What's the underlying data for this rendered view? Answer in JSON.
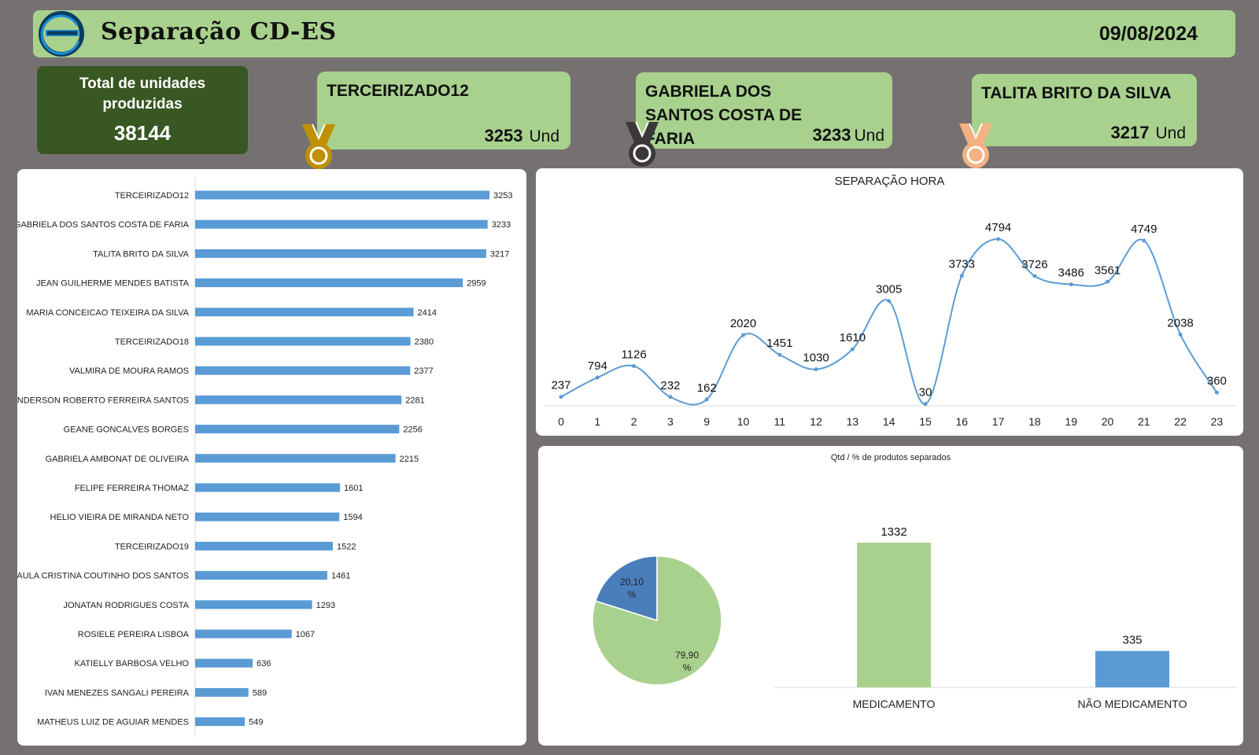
{
  "header": {
    "title": "Separação CD-ES",
    "date": "09/08/2024",
    "logo_icon": "company-logo"
  },
  "total": {
    "label": "Total de unidades produzidas",
    "value": "38144"
  },
  "top3": [
    {
      "rank": 1,
      "name": "TERCEIRIZADO12",
      "value": "3253",
      "unit": "Und",
      "medal_icon": "gold-medal-icon",
      "medal_color": "#bf9000"
    },
    {
      "rank": 2,
      "name": "GABRIELA DOS SANTOS COSTA DE FARIA",
      "value": "3233",
      "unit": "Und",
      "medal_icon": "silver-medal-icon",
      "medal_color": "#3b3838"
    },
    {
      "rank": 3,
      "name": "TALITA BRITO DA SILVA",
      "value": "3217",
      "unit": "Und",
      "medal_icon": "bronze-medal-icon",
      "medal_color": "#f4b183"
    }
  ],
  "chart_data": [
    {
      "type": "bar",
      "orientation": "horizontal",
      "color": "#5b9bd5",
      "categories": [
        "TERCEIRIZADO12",
        "GABRIELA DOS SANTOS COSTA DE FARIA",
        "TALITA BRITO DA SILVA",
        "JEAN GUILHERME MENDES BATISTA",
        "MARIA CONCEICAO TEIXEIRA DA SILVA",
        "TERCEIRIZADO18",
        "VALMIRA DE MOURA RAMOS",
        "ANDERSON ROBERTO FERREIRA SANTOS",
        "GEANE GONCALVES BORGES",
        "GABRIELA AMBONAT DE OLIVEIRA",
        "FELIPE FERREIRA THOMAZ",
        "HELIO VIEIRA DE MIRANDA NETO",
        "TERCEIRIZADO19",
        "PAULA CRISTINA COUTINHO DOS SANTOS",
        "JONATAN RODRIGUES COSTA",
        "ROSIELE PEREIRA LISBOA",
        "KATIELLY BARBOSA VELHO",
        "IVAN MENEZES SANGALI PEREIRA",
        "MATHEUS LUIZ DE AGUIAR MENDES"
      ],
      "values": [
        3253,
        3233,
        3217,
        2959,
        2414,
        2380,
        2377,
        2281,
        2256,
        2215,
        1601,
        1594,
        1522,
        1461,
        1293,
        1067,
        636,
        589,
        549
      ],
      "xlim": [
        0,
        3253
      ],
      "data_labels": true
    },
    {
      "type": "line",
      "smooth": true,
      "color": "#5b9bd5",
      "title": "SEPARAÇÃO HORA",
      "categories": [
        "0",
        "1",
        "2",
        "3",
        "9",
        "10",
        "11",
        "12",
        "13",
        "14",
        "15",
        "16",
        "17",
        "18",
        "19",
        "20",
        "21",
        "22",
        "23"
      ],
      "values": [
        237,
        794,
        1126,
        232,
        162,
        2020,
        1451,
        1030,
        1610,
        3005,
        30,
        3733,
        4794,
        3726,
        3486,
        3561,
        4749,
        2038,
        360
      ],
      "data_labels": true
    },
    {
      "type": "pie",
      "title": "Qtd / % de produtos separados",
      "labels": [
        "20,10 %",
        "79,90 %"
      ],
      "values": [
        20.1,
        79.9
      ],
      "colors": [
        "#4a7ebb",
        "#a9d18e"
      ]
    },
    {
      "type": "bar",
      "categories": [
        "MEDICAMENTO",
        "NÃO MEDICAMENTO"
      ],
      "values": [
        1332,
        335
      ],
      "colors": [
        "#a9d18e",
        "#5b9bd5"
      ],
      "ylim": [
        0,
        1332
      ],
      "data_labels": true
    }
  ]
}
